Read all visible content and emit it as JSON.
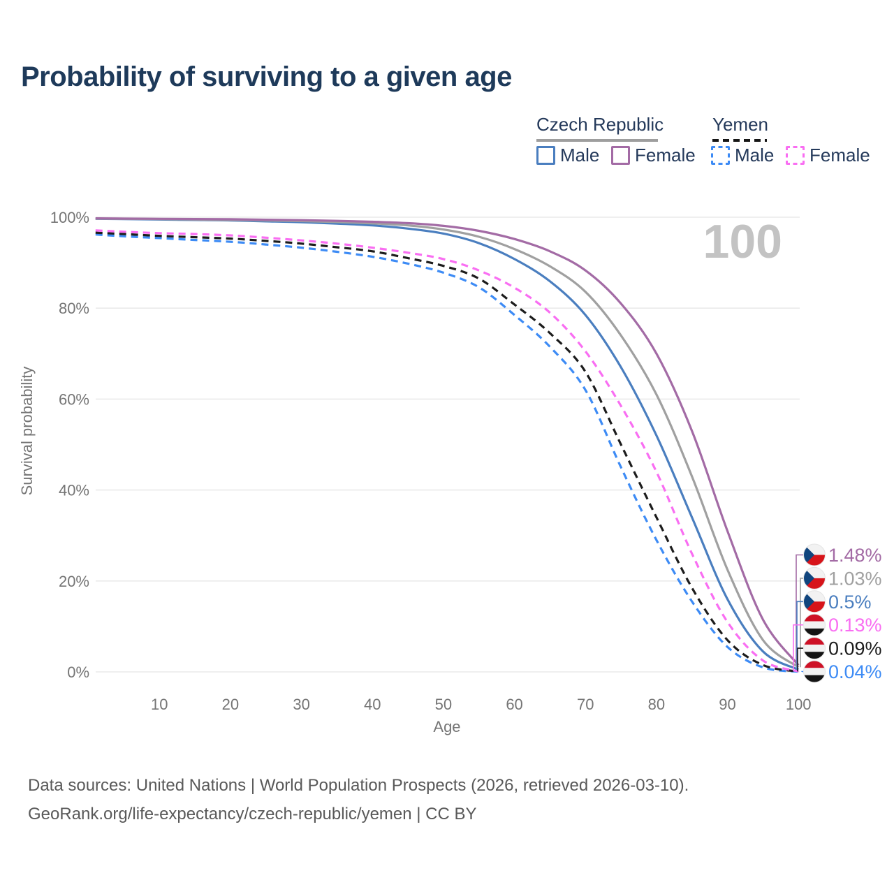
{
  "page": {
    "title": "Probability of surviving to a given age"
  },
  "legend": {
    "groups": [
      {
        "country": "Czech Republic",
        "style": "solid",
        "items": [
          {
            "label": "Male"
          },
          {
            "label": "Female"
          }
        ]
      },
      {
        "country": "Yemen",
        "style": "dashed",
        "items": [
          {
            "label": "Male"
          },
          {
            "label": "Female"
          }
        ]
      }
    ]
  },
  "colors": {
    "title_text": "#1e3a5a",
    "legend_text": "#24395a",
    "axis_text": "#757575",
    "grid": "#eaeaea",
    "watermark": "#c3c3c3",
    "footer_text": "#595959",
    "czech_underline": "#9e9e9e",
    "yemen_underline": "#161616",
    "czech_male": "#4a7ebf",
    "czech_female": "#a36ba5",
    "czech_all": "#a0a0a0",
    "yemen_male": "#3d8bf5",
    "yemen_female": "#f96ef2",
    "yemen_all": "#1c1c1c",
    "flag_cz_blue": "#11457e",
    "flag_cz_red": "#d7141a",
    "flag_cz_white": "#f2f2f2",
    "flag_ye_red": "#ce1126",
    "flag_ye_white": "#f2f2f2",
    "flag_ye_black": "#141414"
  },
  "chart_data": {
    "type": "line",
    "title": "Probability of surviving to a given age",
    "xlabel": "Age",
    "ylabel": "Survival probability",
    "xlim": [
      1,
      100
    ],
    "ylim": [
      0,
      100
    ],
    "x_ticks": [
      10,
      20,
      30,
      40,
      50,
      60,
      70,
      80,
      90,
      100
    ],
    "y_tick_values": [
      0,
      20,
      40,
      60,
      80,
      100
    ],
    "y_tick_labels": [
      "0%",
      "20%",
      "40%",
      "60%",
      "80%",
      "100%"
    ],
    "grid": "horizontal-only",
    "legend_position": "top-right",
    "age_counter": "100",
    "ages": [
      1,
      5,
      10,
      15,
      20,
      25,
      30,
      35,
      40,
      45,
      50,
      55,
      60,
      65,
      70,
      75,
      80,
      85,
      90,
      95,
      100
    ],
    "series": [
      {
        "name": "Czech Republic Female",
        "country": "Czech Republic",
        "sex": "Female",
        "style": "solid",
        "color_key": "czech_female",
        "flag": "cz",
        "end_label": "1.48%",
        "values": [
          99.75,
          99.7,
          99.65,
          99.6,
          99.55,
          99.45,
          99.35,
          99.2,
          99.0,
          98.7,
          98.1,
          97.0,
          95.2,
          92.5,
          88.3,
          81.0,
          70.0,
          53.0,
          31.0,
          11.5,
          1.48
        ]
      },
      {
        "name": "Czech Republic Both sexes",
        "country": "Czech Republic",
        "sex": "Both",
        "style": "solid",
        "color_key": "czech_all",
        "flag": "cz",
        "end_label": "1.03%",
        "values": [
          99.7,
          99.65,
          99.6,
          99.5,
          99.4,
          99.3,
          99.15,
          98.95,
          98.65,
          98.2,
          97.3,
          95.7,
          93.0,
          89.2,
          83.6,
          74.0,
          61.0,
          43.0,
          22.5,
          7.0,
          1.03
        ]
      },
      {
        "name": "Czech Republic Male",
        "country": "Czech Republic",
        "sex": "Male",
        "style": "solid",
        "color_key": "czech_male",
        "flag": "cz",
        "end_label": "0.5%",
        "values": [
          99.65,
          99.6,
          99.5,
          99.4,
          99.3,
          99.1,
          98.9,
          98.6,
          98.2,
          97.5,
          96.4,
          94.3,
          90.8,
          85.9,
          78.5,
          67.0,
          52.0,
          34.0,
          16.0,
          4.5,
          0.5
        ]
      },
      {
        "name": "Yemen Female",
        "country": "Yemen",
        "sex": "Female",
        "style": "dashed",
        "color_key": "yemen_female",
        "flag": "ye",
        "end_label": "0.13%",
        "values": [
          97.1,
          96.8,
          96.5,
          96.3,
          96.0,
          95.5,
          94.9,
          94.2,
          93.3,
          92.2,
          90.8,
          88.3,
          84.5,
          79.0,
          70.5,
          58.5,
          44.0,
          26.0,
          11.0,
          2.5,
          0.13
        ]
      },
      {
        "name": "Yemen Both sexes",
        "country": "Yemen",
        "sex": "Both",
        "style": "dashed",
        "color_key": "yemen_all",
        "flag": "ye",
        "end_label": "0.09%",
        "values": [
          96.6,
          96.3,
          95.9,
          95.6,
          95.3,
          94.8,
          94.2,
          93.4,
          92.5,
          91.0,
          89.3,
          86.5,
          80.8,
          74.5,
          66.0,
          50.0,
          34.0,
          18.5,
          7.0,
          1.5,
          0.09
        ]
      },
      {
        "name": "Yemen Male",
        "country": "Yemen",
        "sex": "Male",
        "style": "dashed",
        "color_key": "yemen_male",
        "flag": "ye",
        "end_label": "0.04%",
        "values": [
          96.2,
          95.8,
          95.4,
          95.0,
          94.6,
          94.0,
          93.3,
          92.4,
          91.3,
          89.8,
          87.8,
          84.6,
          78.5,
          71.5,
          62.0,
          45.0,
          29.0,
          15.5,
          5.5,
          1.0,
          0.04
        ]
      }
    ]
  },
  "footer": {
    "line1": "Data sources: United Nations | World Population Prospects (2026, retrieved 2026-03-10).",
    "line2": "GeoRank.org/life-expectancy/czech-republic/yemen | CC BY"
  }
}
